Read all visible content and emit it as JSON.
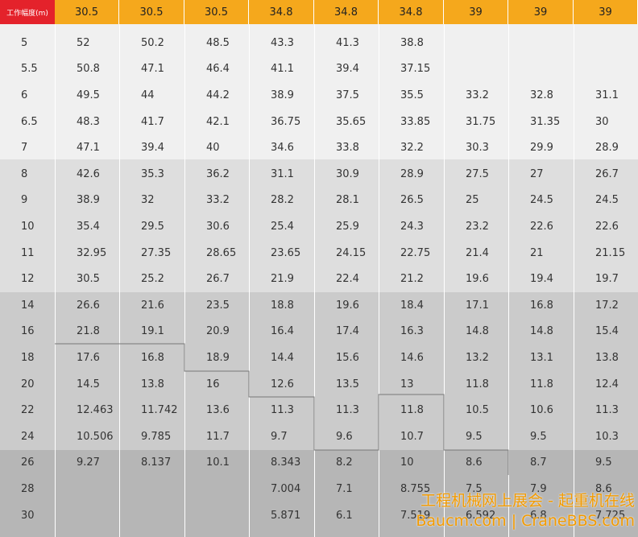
{
  "header": {
    "corner": "工作幅度(m)",
    "columns": [
      "30.5",
      "30.5",
      "30.5",
      "34.8",
      "34.8",
      "34.8",
      "39",
      "39",
      "39"
    ]
  },
  "rows": [
    {
      "label": "5",
      "cells": [
        "52",
        "50.2",
        "48.5",
        "43.3",
        "41.3",
        "38.8",
        null,
        null,
        null
      ]
    },
    {
      "label": "5.5",
      "cells": [
        "50.8",
        "47.1",
        "46.4",
        "41.1",
        "39.4",
        "37.15",
        null,
        null,
        null
      ]
    },
    {
      "label": "6",
      "cells": [
        "49.5",
        "44",
        "44.2",
        "38.9",
        "37.5",
        "35.5",
        "33.2",
        "32.8",
        "31.1"
      ]
    },
    {
      "label": "6.5",
      "cells": [
        "48.3",
        "41.7",
        "42.1",
        "36.75",
        "35.65",
        "33.85",
        "31.75",
        "31.35",
        "30"
      ]
    },
    {
      "label": "7",
      "cells": [
        "47.1",
        "39.4",
        "40",
        "34.6",
        "33.8",
        "32.2",
        "30.3",
        "29.9",
        "28.9"
      ]
    },
    {
      "label": "8",
      "cells": [
        "42.6",
        "35.3",
        "36.2",
        "31.1",
        "30.9",
        "28.9",
        "27.5",
        "27",
        "26.7"
      ]
    },
    {
      "label": "9",
      "cells": [
        "38.9",
        "32",
        "33.2",
        "28.2",
        "28.1",
        "26.5",
        "25",
        "24.5",
        "24.5"
      ]
    },
    {
      "label": "10",
      "cells": [
        "35.4",
        "29.5",
        "30.6",
        "25.4",
        "25.9",
        "24.3",
        "23.2",
        "22.6",
        "22.6"
      ]
    },
    {
      "label": "11",
      "cells": [
        "32.95",
        "27.35",
        "28.65",
        "23.65",
        "24.15",
        "22.75",
        "21.4",
        "21",
        "21.15"
      ]
    },
    {
      "label": "12",
      "cells": [
        "30.5",
        "25.2",
        "26.7",
        "21.9",
        "22.4",
        "21.2",
        "19.6",
        "19.4",
        "19.7"
      ]
    },
    {
      "label": "14",
      "cells": [
        "26.6",
        "21.6",
        "23.5",
        "18.8",
        "19.6",
        "18.4",
        "17.1",
        "16.8",
        "17.2"
      ]
    },
    {
      "label": "16",
      "cells": [
        "21.8",
        "19.1",
        "20.9",
        "16.4",
        "17.4",
        "16.3",
        "14.8",
        "14.8",
        "15.4"
      ]
    },
    {
      "label": "18",
      "cells": [
        "17.6",
        "16.8",
        "18.9",
        "14.4",
        "15.6",
        "14.6",
        "13.2",
        "13.1",
        "13.8"
      ]
    },
    {
      "label": "20",
      "cells": [
        "14.5",
        "13.8",
        "16",
        "12.6",
        "13.5",
        "13",
        "11.8",
        "11.8",
        "12.4"
      ]
    },
    {
      "label": "22",
      "cells": [
        "12.463",
        "11.742",
        "13.6",
        "11.3",
        "11.3",
        "11.8",
        "10.5",
        "10.6",
        "11.3"
      ]
    },
    {
      "label": "24",
      "cells": [
        "10.506",
        "9.785",
        "11.7",
        "9.7",
        "9.6",
        "10.7",
        "9.5",
        "9.5",
        "10.3"
      ]
    },
    {
      "label": "26",
      "cells": [
        "9.27",
        "8.137",
        "10.1",
        "8.343",
        "8.2",
        "10",
        "8.6",
        "8.7",
        "9.5"
      ]
    },
    {
      "label": "28",
      "cells": [
        null,
        null,
        null,
        "7.004",
        "7.1",
        "8.755",
        "7.5",
        "7.9",
        "8.6"
      ]
    },
    {
      "label": "30",
      "cells": [
        null,
        null,
        null,
        "5.871",
        "6.1",
        "7.519",
        "6.592",
        "6.8",
        "7.725"
      ]
    }
  ],
  "watermark": {
    "line1": "工程机械网上展会 - 起重机在线",
    "line2": "Baucm.com | CraneBBS.com"
  }
}
